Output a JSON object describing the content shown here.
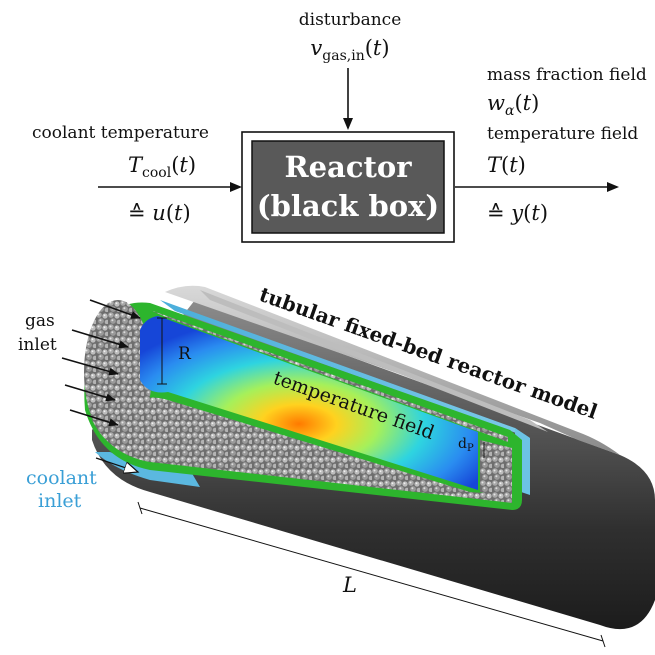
{
  "block_diagram": {
    "disturbance_label": "disturbance",
    "disturbance_math": "v_gas,in(t)",
    "input_label": "coolant temperature",
    "input_math": "T_cool(t)",
    "input_equiv": "≙ u(t)",
    "box_line1": "Reactor",
    "box_line2": "(black box)",
    "output_label1": "mass fraction field",
    "output_math1": "w_α(t)",
    "output_label2": "temperature field",
    "output_math2": "T(t)",
    "output_equiv": "≙ y(t)"
  },
  "reactor_model": {
    "title": "tubular fixed-bed reactor model",
    "gas_inlet_line1": "gas",
    "gas_inlet_line2": "inlet",
    "coolant_inlet_line1": "coolant",
    "coolant_inlet_line2": "inlet",
    "temperature_field_label": "temperature field",
    "radius_label": "R",
    "particle_diameter_label": "dP",
    "length_label": "L"
  },
  "colors": {
    "box_fill": "#595959",
    "catalyst_wall": "#2db52d",
    "coolant": "#5bb8e0",
    "coolant_text": "#3a9fd6"
  }
}
